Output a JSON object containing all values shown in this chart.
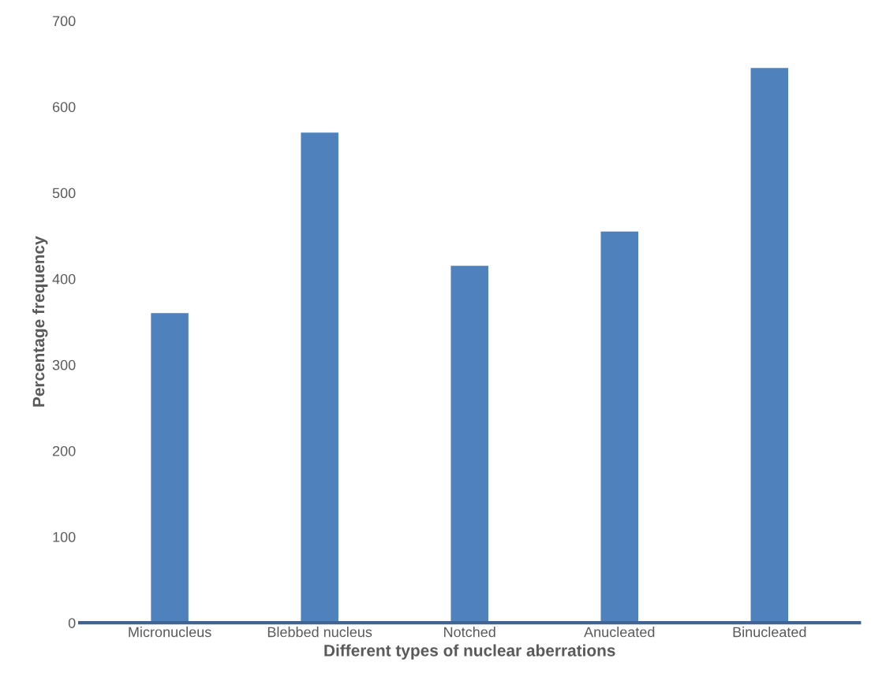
{
  "chart_data": {
    "type": "bar",
    "xlabel": "Different types of nuclear aberrations",
    "ylabel": "Percentage frequency",
    "categories": [
      "Micronucleus",
      "Blebbed nucleus",
      "Notched",
      "Anucleated",
      "Binucleated"
    ],
    "values": [
      360,
      570,
      415,
      455,
      645
    ],
    "color": "#4f81bd",
    "ylim": [
      0,
      700
    ],
    "yticks": [
      0,
      100,
      200,
      300,
      400,
      500,
      600,
      700
    ],
    "grid": false
  }
}
